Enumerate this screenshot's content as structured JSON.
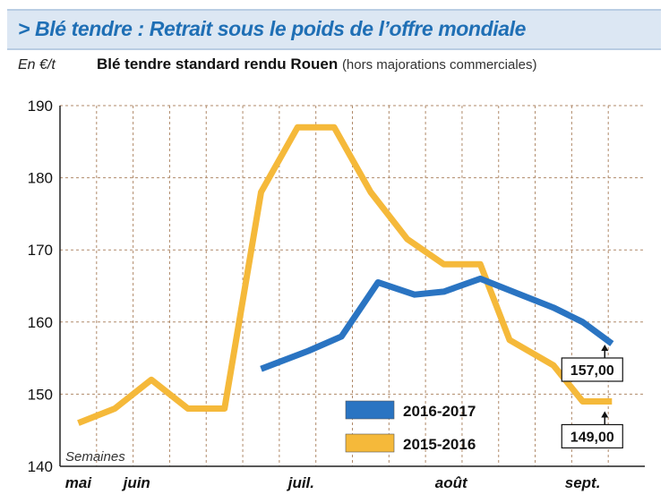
{
  "title": "> Blé tendre : Retrait sous le poids de l’offre mondiale",
  "unit_label": "En €/t",
  "subtitle": "Blé tendre standard rendu Rouen",
  "subtitle_note": "(hors majorations commerciales)",
  "colors": {
    "series_2016_2017": "#2a74c2",
    "series_2015_2016": "#f5b93a",
    "grid": "#b08a6a",
    "title_bg": "#dce7f3",
    "title_text": "#1f6fb5"
  },
  "chart_data": {
    "type": "line",
    "xlabel": "Semaines",
    "ylabel": "En €/t",
    "ylim": [
      140,
      190
    ],
    "yticks": [
      140,
      150,
      160,
      170,
      180,
      190
    ],
    "week_count": 16,
    "month_labels": [
      {
        "label": "mai",
        "week": 1
      },
      {
        "label": "juin",
        "week": 2.6
      },
      {
        "label": "juil.",
        "week": 7.1
      },
      {
        "label": "août",
        "week": 11.2
      },
      {
        "label": "sept.",
        "week": 14.8
      }
    ],
    "grid": true,
    "legend_position": "bottom-center",
    "series": [
      {
        "name": "2016-2017",
        "color": "#2a74c2",
        "points": [
          [
            6,
            153.5
          ],
          [
            7.3,
            156
          ],
          [
            8.2,
            158
          ],
          [
            9.2,
            165.5
          ],
          [
            10.2,
            163.8
          ],
          [
            11,
            164.2
          ],
          [
            12,
            166
          ],
          [
            13,
            164
          ],
          [
            14,
            162
          ],
          [
            14.8,
            160
          ],
          [
            15.6,
            157
          ]
        ],
        "end_label": "157,00"
      },
      {
        "name": "2015-2016",
        "color": "#f5b93a",
        "points": [
          [
            1,
            146
          ],
          [
            2,
            148
          ],
          [
            3,
            152
          ],
          [
            4,
            148
          ],
          [
            5,
            148
          ],
          [
            6,
            178
          ],
          [
            7,
            187
          ],
          [
            8,
            187
          ],
          [
            9,
            178
          ],
          [
            10,
            171.5
          ],
          [
            11,
            168
          ],
          [
            12,
            168
          ],
          [
            12.8,
            157.5
          ],
          [
            14,
            154
          ],
          [
            14.8,
            149
          ],
          [
            15.6,
            149
          ]
        ],
        "end_label": "149,00"
      }
    ]
  }
}
